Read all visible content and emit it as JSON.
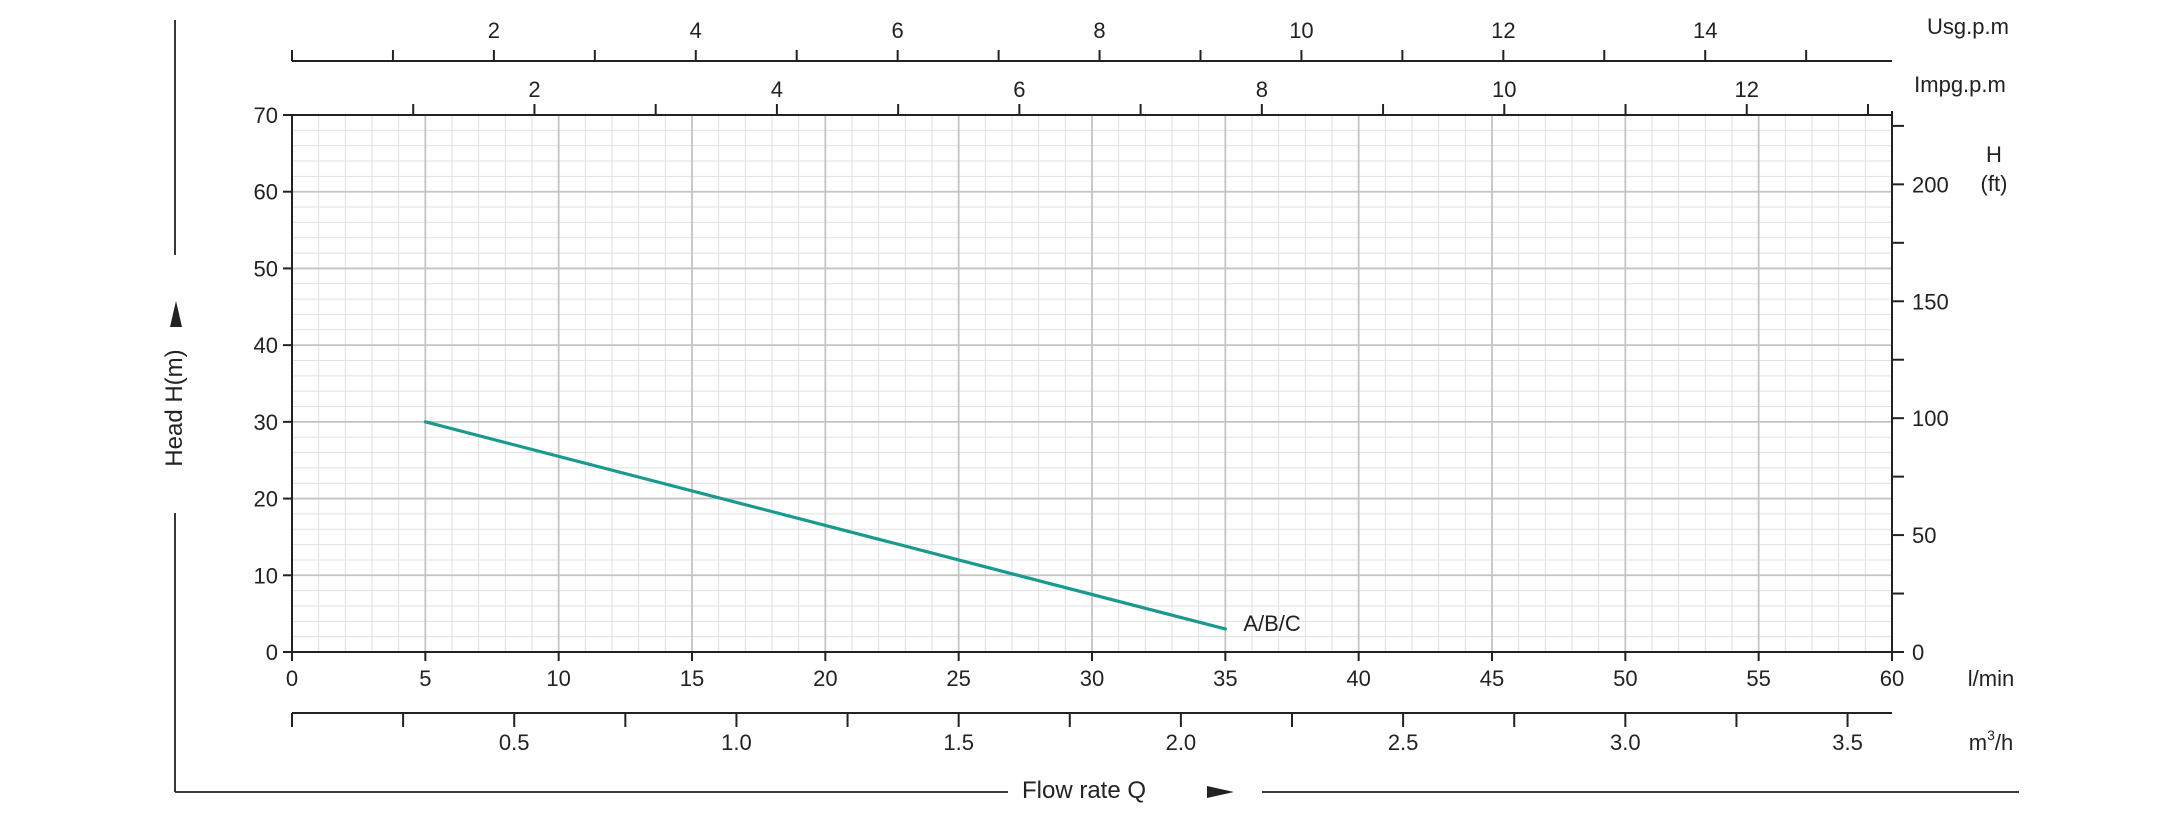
{
  "chart_data": {
    "type": "line",
    "x": [
      5,
      35
    ],
    "series": [
      {
        "name": "A/B/C",
        "x": [
          5,
          35
        ],
        "y": [
          30,
          3
        ]
      }
    ],
    "xlim": [
      0,
      60
    ],
    "ylim": [
      0,
      70
    ],
    "grid": true,
    "xlabel": "Flow rate Q",
    "ylabel": "Head H(m)",
    "x_ticks": [
      0,
      5,
      10,
      15,
      20,
      25,
      30,
      35,
      40,
      45,
      50,
      55,
      60
    ],
    "y_ticks": [
      0,
      10,
      20,
      30,
      40,
      50,
      60,
      70
    ],
    "x_unit": "l/min",
    "axis_m3h": {
      "unit_base": "m",
      "unit_sup": "3",
      "unit_tail": "/h",
      "ticks": [
        "0.5",
        "1.0",
        "1.5",
        "2.0",
        "2.5",
        "3.0",
        "3.5"
      ],
      "values": [
        0.5,
        1.0,
        1.5,
        2.0,
        2.5,
        3.0,
        3.5
      ]
    },
    "axis_impgpm": {
      "unit": "Impg.p.m",
      "ticks": [
        "2",
        "4",
        "6",
        "8",
        "10",
        "12"
      ],
      "values": [
        2,
        4,
        6,
        8,
        10,
        12
      ]
    },
    "axis_usgpm": {
      "unit": "Usg.p.m",
      "ticks": [
        "2",
        "4",
        "6",
        "8",
        "10",
        "12",
        "14"
      ],
      "values": [
        2,
        4,
        6,
        8,
        10,
        12,
        14
      ]
    },
    "axis_ft": {
      "unit_line1": "H",
      "unit_line2": "(ft)",
      "ticks": [
        "0",
        "50",
        "100",
        "150",
        "200"
      ],
      "values": [
        0,
        50,
        100,
        150,
        200
      ]
    },
    "colors": {
      "curve": "#1a9a8e",
      "grid_major": "#c4c4c4",
      "grid_minor": "#e1e1e1",
      "axis": "#222222"
    }
  }
}
